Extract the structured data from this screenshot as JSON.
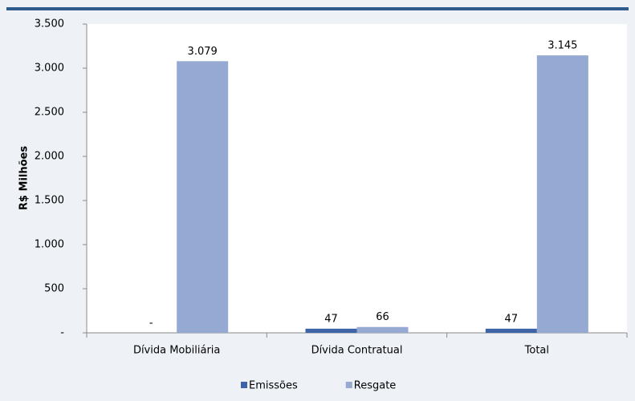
{
  "chart_data": {
    "type": "bar",
    "y_label": "R$ Milhões",
    "categories": [
      "Dívida Mobiliária",
      "Dívida Contratual",
      "Total"
    ],
    "series": [
      {
        "name": "Emissões",
        "color": "#3c64a6",
        "values": [
          0,
          47,
          47
        ],
        "value_labels": [
          "-",
          "47",
          "47"
        ]
      },
      {
        "name": "Resgate",
        "color": "#95a9d2",
        "values": [
          3079,
          66,
          3145
        ],
        "value_labels": [
          "3.079",
          "66",
          "3.145"
        ]
      }
    ],
    "ylim": [
      0,
      3500
    ],
    "yticks": [
      {
        "value": 0,
        "label": "-"
      },
      500,
      {
        "value": 1000,
        "label": "1.000"
      },
      {
        "value": 1500,
        "label": "1.500"
      },
      {
        "value": 2000,
        "label": "2.000"
      },
      {
        "value": 2500,
        "label": "2.500"
      },
      {
        "value": 3000,
        "label": "3.000"
      },
      {
        "value": 3500,
        "label": "3.500"
      }
    ],
    "grid": false
  }
}
